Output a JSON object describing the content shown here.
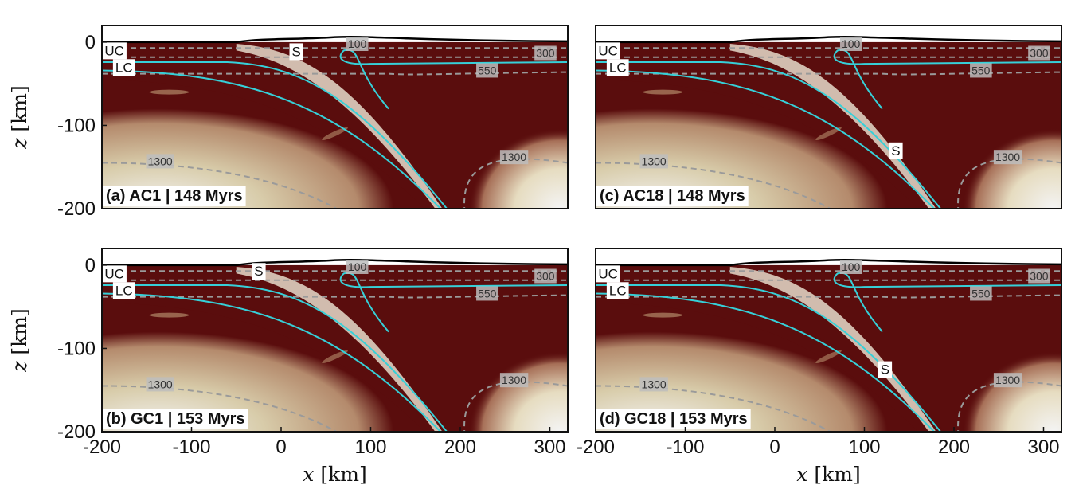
{
  "panels": [
    {
      "id": "a",
      "title": "(a) AC1 | 148 Myrs",
      "col": 0,
      "row": 0,
      "s_label": "S",
      "s_pos": [
        12,
        -11
      ],
      "uc": "UC",
      "lc": "LC",
      "iso100": "100",
      "iso300": "300",
      "iso550": "550",
      "iso1300_left": "1300",
      "iso1300_right": "1300"
    },
    {
      "id": "c",
      "title": "(c) AC18 | 148 Myrs",
      "col": 1,
      "row": 0,
      "s_label": "S",
      "s_pos": [
        130,
        -130
      ],
      "uc": "UC",
      "lc": "LC",
      "iso100": "100",
      "iso300": "300",
      "iso550": "550",
      "iso1300_left": "1300",
      "iso1300_right": "1300"
    },
    {
      "id": "b",
      "title": "(b) GC1 | 153 Myrs",
      "col": 0,
      "row": 1,
      "s_label": "S",
      "s_pos": [
        -30,
        -7
      ],
      "uc": "UC",
      "lc": "LC",
      "iso100": "100",
      "iso300": "300",
      "iso550": "550",
      "iso1300_left": "1300",
      "iso1300_right": "1300"
    },
    {
      "id": "d",
      "title": "(d) GC18 | 153 Myrs",
      "col": 1,
      "row": 1,
      "s_label": "S",
      "s_pos": [
        118,
        -125
      ],
      "uc": "UC",
      "lc": "LC",
      "iso100": "100",
      "iso300": "300",
      "iso550": "550",
      "iso1300_left": "1300",
      "iso1300_right": "1300"
    }
  ],
  "axes": {
    "x_ticks": [
      "-200",
      "-100",
      "0",
      "100",
      "200",
      "300"
    ],
    "x_tick_values": [
      -200,
      -100,
      0,
      100,
      200,
      300
    ],
    "y_ticks": [
      "0",
      "-100",
      "-200"
    ],
    "y_tick_values": [
      0,
      -100,
      -200
    ],
    "xlim": [
      -200,
      320
    ],
    "ylim": [
      -200,
      20
    ],
    "x_label_var": "x",
    "x_label_unit": " [km]",
    "y_label_var": "z",
    "y_label_unit": " [km]"
  },
  "colors": {
    "lithosphere": "#5a0d0d",
    "hot_mantle": "#d8ccaa",
    "hottest": "#f4f4f4",
    "crust_highlight": "#e6dccb",
    "interface": "#36d0d8",
    "isotherm": "#9a9a9a"
  }
}
